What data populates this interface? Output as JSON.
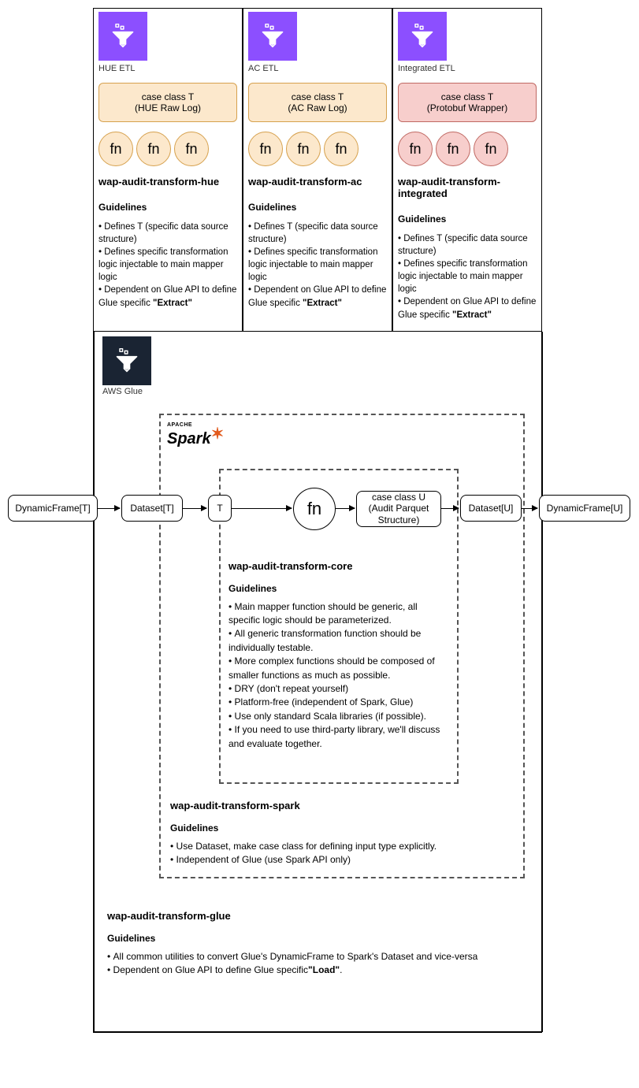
{
  "colors": {
    "purple_icon_bg": "#8c4fff",
    "dark_icon_bg": "#1a2433",
    "orange_fill": "#fce8cc",
    "orange_border": "#d6a14e",
    "pink_fill": "#f7cecc",
    "pink_border": "#c06963"
  },
  "top_columns": [
    {
      "icon_label": "HUE ETL",
      "case_line1": "case class T",
      "case_line2": "(HUE Raw Log)",
      "variant": "orange",
      "fn_labels": [
        "fn",
        "fn",
        "fn"
      ],
      "module": "wap-audit-transform-hue",
      "guidelines_title": "Guidelines",
      "guidelines": [
        "Defines T (specific data source structure)",
        "Defines specific transformation logic injectable to main mapper logic",
        "Dependent on Glue API to define Glue specific <b>\"Extract\"</b>"
      ]
    },
    {
      "icon_label": "AC ETL",
      "case_line1": "case class T",
      "case_line2": "(AC Raw Log)",
      "variant": "orange",
      "fn_labels": [
        "fn",
        "fn",
        "fn"
      ],
      "module": "wap-audit-transform-ac",
      "guidelines_title": "Guidelines",
      "guidelines": [
        "Defines T (specific data source structure)",
        "Defines specific transformation logic injectable to main mapper logic",
        "Dependent on Glue API to define Glue specific <b>\"Extract\"</b>"
      ]
    },
    {
      "icon_label": "Integrated ETL",
      "case_line1": "case class T",
      "case_line2": "(Protobuf Wrapper)",
      "variant": "pink",
      "fn_labels": [
        "fn",
        "fn",
        "fn"
      ],
      "module": "wap-audit-transform-integrated",
      "guidelines_title": "Guidelines",
      "guidelines": [
        "Defines T (specific data source structure)",
        "Defines specific transformation logic injectable to main mapper logic",
        "Dependent on Glue API to define Glue specific <b>\"Extract\"</b>"
      ]
    }
  ],
  "bottom": {
    "glue_label": "AWS Glue",
    "spark_label_small": "APACHE",
    "spark_label_main": "Spark",
    "flow_nodes": {
      "n1": "DynamicFrame[T]",
      "n2": "Dataset[T]",
      "n3": "T",
      "fn": "fn",
      "n4a": "case class U",
      "n4b": "(Audit Parquet",
      "n4c": "Structure)",
      "n5": "Dataset[U]",
      "n6": "DynamicFrame[U]"
    },
    "core": {
      "module": "wap-audit-transform-core",
      "gt": "Guidelines",
      "items": [
        "Main mapper function should be generic, all specific logic should be parameterized.",
        "All generic transformation function should be individually testable.",
        "More complex functions should be composed of smaller functions as much as possible.",
        "DRY (don't repeat yourself)",
        "Platform-free (independent of Spark, Glue)",
        "Use only standard Scala libraries (if possible).",
        "If you need to use third-party library, we'll discuss and evaluate together."
      ]
    },
    "spark": {
      "module": "wap-audit-transform-spark",
      "gt": "Guidelines",
      "items": [
        "Use Dataset, make case class for defining input type explicitly.",
        "Independent of Glue (use Spark API only)"
      ]
    },
    "glue": {
      "module": "wap-audit-transform-glue",
      "gt": "Guidelines",
      "items": [
        "All common utilities to convert Glue's DynamicFrame to Spark's Dataset and vice-versa",
        "Dependent on Glue API to define Glue specific<b>\"Load\"</b>."
      ]
    }
  }
}
